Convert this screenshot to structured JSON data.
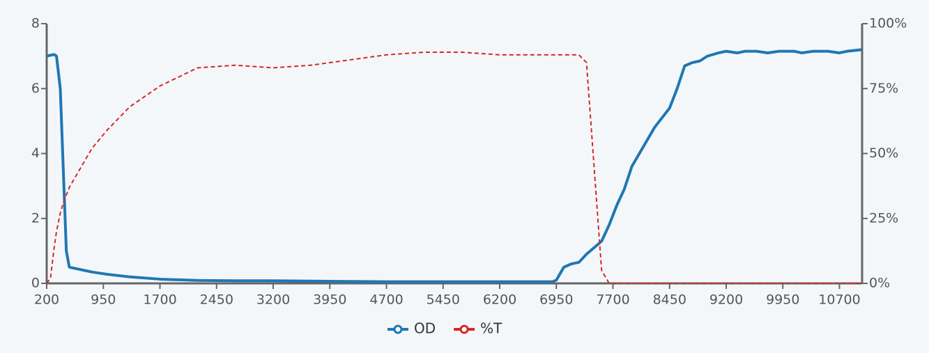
{
  "chart_data": {
    "type": "line",
    "x": [
      200,
      250,
      300,
      330,
      380,
      420,
      460,
      500,
      600,
      800,
      1000,
      1300,
      1700,
      2200,
      2700,
      3200,
      3700,
      4200,
      4700,
      5200,
      5700,
      6200,
      6700,
      6900,
      6950,
      7050,
      7150,
      7250,
      7350,
      7450,
      7550,
      7650,
      7750,
      7850,
      7950,
      8050,
      8150,
      8250,
      8350,
      8450,
      8550,
      8650,
      8750,
      8850,
      8950,
      9100,
      9200,
      9350,
      9450,
      9600,
      9750,
      9900,
      10100,
      10200,
      10350,
      10550,
      10700,
      10800,
      11000
    ],
    "series": [
      {
        "name": "OD",
        "color": "#1f77b4",
        "dashed": false,
        "values": [
          7.0,
          7.03,
          7.05,
          7.0,
          6.0,
          3.5,
          1.0,
          0.5,
          0.45,
          0.35,
          0.28,
          0.2,
          0.13,
          0.09,
          0.08,
          0.08,
          0.07,
          0.06,
          0.05,
          0.05,
          0.05,
          0.05,
          0.05,
          0.05,
          0.1,
          0.5,
          0.6,
          0.65,
          0.9,
          1.1,
          1.3,
          1.8,
          2.4,
          2.9,
          3.6,
          4.0,
          4.4,
          4.8,
          5.1,
          5.4,
          6.0,
          6.7,
          6.8,
          6.85,
          7.0,
          7.1,
          7.15,
          7.1,
          7.15,
          7.15,
          7.1,
          7.15,
          7.15,
          7.1,
          7.15,
          7.15,
          7.1,
          7.15,
          7.2
        ]
      },
      {
        "name": "%T",
        "color": "#d62728",
        "dashed": true,
        "axis": "y2",
        "values": [
          0,
          2,
          14,
          20,
          27,
          31,
          34,
          37,
          42,
          52,
          59,
          68,
          76,
          83,
          84,
          83,
          84,
          86,
          88,
          89,
          89,
          88,
          88,
          88,
          88,
          88,
          88,
          88,
          85,
          45,
          5,
          0,
          0,
          0,
          0,
          0,
          0,
          0,
          0,
          0,
          0,
          0,
          0,
          0,
          0,
          0,
          0,
          0,
          0,
          0,
          0,
          0,
          0,
          0,
          0,
          0,
          0,
          0,
          0
        ]
      }
    ],
    "xlim": [
      200,
      11000
    ],
    "xticks": [
      200,
      950,
      1700,
      2450,
      3200,
      3950,
      4700,
      5450,
      6200,
      6950,
      7700,
      8450,
      9200,
      9950,
      10700
    ],
    "ylim": [
      0,
      8
    ],
    "yticks": [
      0,
      2,
      4,
      6,
      8
    ],
    "y2lim": [
      0,
      100
    ],
    "y2ticks": [
      {
        "value": 0,
        "label": "0%"
      },
      {
        "value": 25,
        "label": "25%"
      },
      {
        "value": 50,
        "label": "50%"
      },
      {
        "value": 75,
        "label": "75%"
      },
      {
        "value": 100,
        "label": "100%"
      }
    ],
    "legend": "bottom"
  }
}
